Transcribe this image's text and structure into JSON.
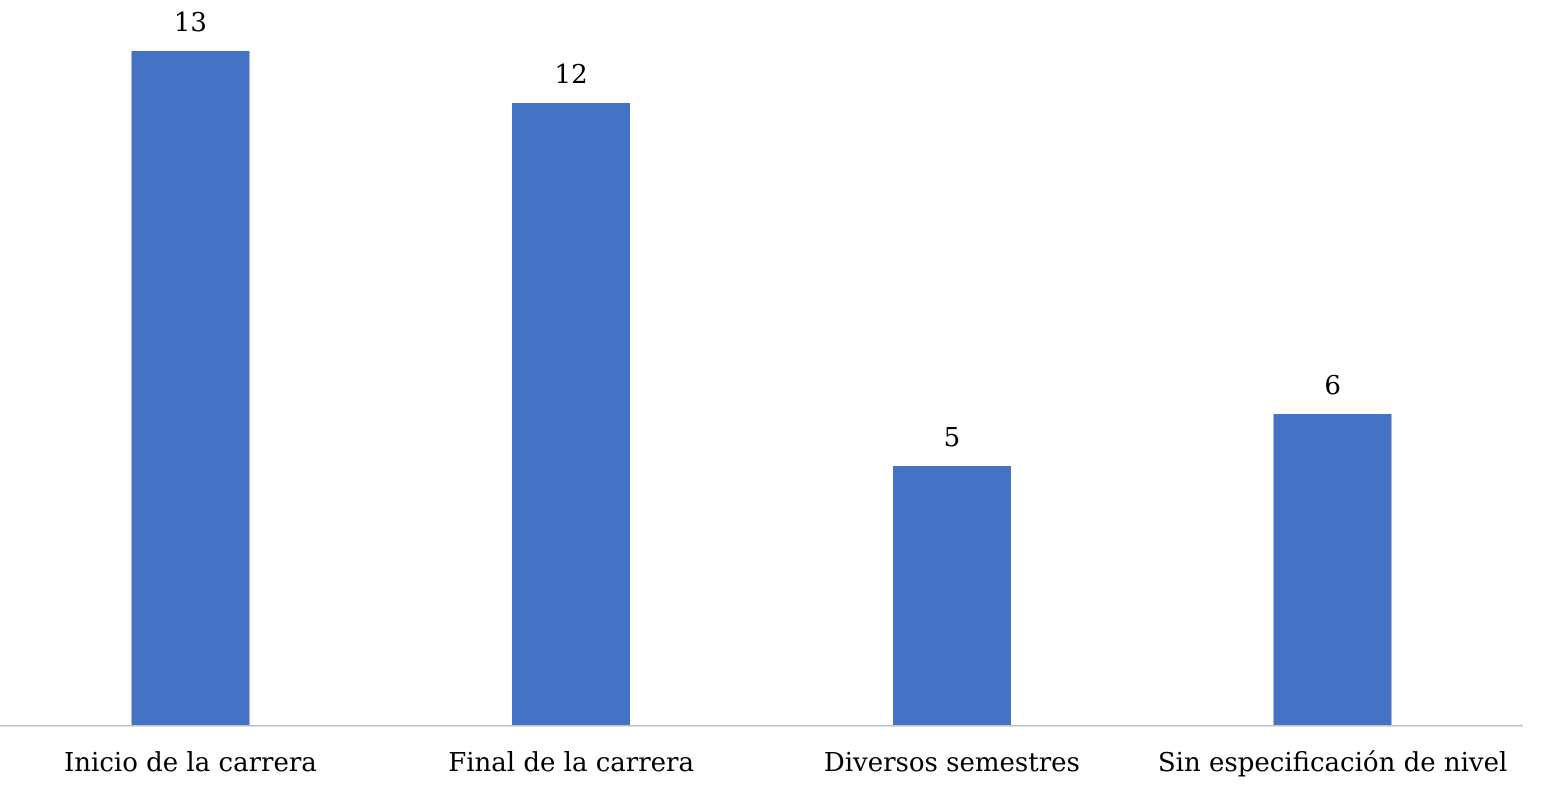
{
  "chart_data": {
    "type": "bar",
    "categories": [
      "Inicio de la carrera",
      "Final de la carrera",
      "Diversos semestres",
      "Sin especificación de nivel"
    ],
    "values": [
      13,
      12,
      5,
      6
    ],
    "data_labels": [
      "13",
      "12",
      "5",
      "6"
    ],
    "title": "",
    "xlabel": "",
    "ylabel": "",
    "ylim": [
      0,
      13
    ],
    "grid": false,
    "legend": "none",
    "colors": {
      "bar": "#4472c4",
      "axis": "#bfbfbf",
      "text": "#000000"
    }
  }
}
